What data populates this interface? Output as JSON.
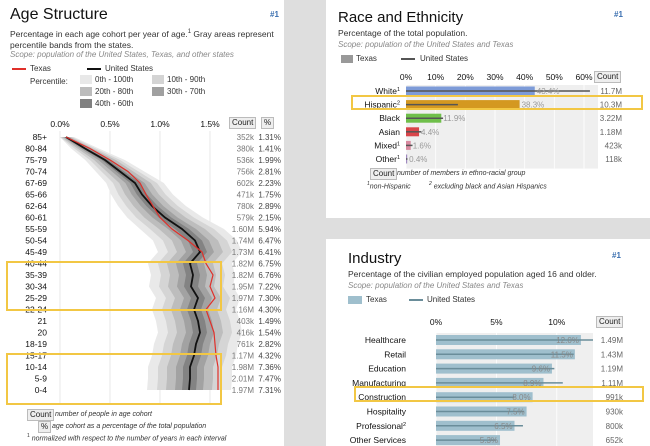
{
  "age": {
    "title": "Age Structure",
    "num": "#1",
    "desc": "Percentage in each age cohort per year of age.",
    "desc_sup": "1",
    "desc2": " Gray areas represent percentile bands from the states.",
    "scope": "Scope: population of the United States, Texas, and other states",
    "legend": {
      "texas": "Texas",
      "us": "United States",
      "percentile_label": "Percentile:",
      "bands": [
        "0th - 100th",
        "10th - 90th",
        "20th - 80th",
        "30th - 70th",
        "40th - 60th"
      ]
    },
    "headers": {
      "count": "Count",
      "pct": "%"
    },
    "footnotes": {
      "count_box": "Count",
      "count_text": "number of people in age cohort",
      "pct_box": "%",
      "pct_text": "age cohort as a percentage of the total population",
      "norm_sup": "1",
      "norm_text": "normalized with respect to the number of years in each interval"
    }
  },
  "race": {
    "title": "Race and Ethnicity",
    "num": "#1",
    "desc": "Percentage of the total population.",
    "scope": "Scope: population of the United States and Texas",
    "legend": {
      "texas": "Texas",
      "us": "United States"
    },
    "count_header": "Count",
    "footnotes": {
      "count_box": "Count",
      "count_text": "number of members in ethno-racial group",
      "sup1": "1",
      "text1": "non-Hispanic",
      "sup2": "2",
      "text2": "excluding black and Asian Hispanics"
    }
  },
  "industry": {
    "title": "Industry",
    "num": "#1",
    "desc": "Percentage of the civilian employed population aged 16 and older.",
    "scope": "Scope: population of the United States and Texas",
    "legend": {
      "texas": "Texas",
      "us": "United States"
    },
    "count_header": "Count"
  },
  "colors": {
    "texas_line": "#e0302a",
    "us_line": "#111111",
    "highlight": "#f2c744",
    "race_blue": "#7d9bd8",
    "race_gold": "#d49820",
    "race_green": "#6fbf4a",
    "race_red": "#d9454a",
    "race_pink": "#d98aa0",
    "race_purple": "#a08bc0",
    "industry_bar": "#9fbfcd",
    "industry_us": "#6a8d9a"
  },
  "chart_data": [
    {
      "type": "line",
      "title": "Age Structure",
      "categories": [
        "85+",
        "80-84",
        "75-79",
        "70-74",
        "67-69",
        "65-66",
        "62-64",
        "60-61",
        "55-59",
        "50-54",
        "45-49",
        "40-44",
        "35-39",
        "30-34",
        "25-29",
        "22-24",
        "21",
        "20",
        "18-19",
        "15-17",
        "10-14",
        "5-9",
        "0-4"
      ],
      "xlim": [
        0,
        1.5
      ],
      "x_ticks": [
        "0.0%",
        "0.5%",
        "1.0%",
        "1.5%"
      ],
      "series": [
        {
          "name": "Texas",
          "values": [
            0.06,
            0.3,
            0.5,
            0.68,
            0.8,
            0.86,
            0.93,
            1.0,
            1.12,
            1.28,
            1.42,
            1.46,
            1.53,
            1.5,
            1.55,
            1.46,
            1.5,
            1.54,
            1.55,
            1.56,
            1.58,
            1.58,
            1.58
          ]
        },
        {
          "name": "United States",
          "values": [
            0.06,
            0.25,
            0.45,
            0.6,
            0.75,
            0.82,
            0.92,
            1.05,
            1.22,
            1.35,
            1.4,
            1.3,
            1.33,
            1.31,
            1.38,
            1.34,
            1.38,
            1.4,
            1.36,
            1.34,
            1.3,
            1.3,
            1.29
          ]
        }
      ],
      "counts": [
        "352k",
        "380k",
        "536k",
        "756k",
        "602k",
        "471k",
        "780k",
        "579k",
        "1.60M",
        "1.74M",
        "1.73M",
        "1.82M",
        "1.82M",
        "1.95M",
        "1.97M",
        "1.16M",
        "403k",
        "416k",
        "761k",
        "1.17M",
        "1.98M",
        "2.01M",
        "1.97M"
      ],
      "percents": [
        "1.31%",
        "1.41%",
        "1.99%",
        "2.81%",
        "2.23%",
        "1.75%",
        "2.89%",
        "2.15%",
        "5.94%",
        "6.47%",
        "6.41%",
        "6.75%",
        "6.76%",
        "7.22%",
        "7.30%",
        "4.30%",
        "1.49%",
        "1.54%",
        "2.82%",
        "4.32%",
        "7.36%",
        "7.47%",
        "7.31%"
      ],
      "highlighted": [
        "40-44",
        "35-39",
        "30-34",
        "25-29",
        "15-17",
        "10-14",
        "5-9",
        "0-4"
      ]
    },
    {
      "type": "bar",
      "title": "Race and Ethnicity",
      "categories": [
        "White",
        "Hispanic",
        "Black",
        "Asian",
        "Mixed",
        "Other"
      ],
      "category_sups": [
        "1",
        "2",
        "",
        "",
        "1",
        "1"
      ],
      "xlim": [
        0,
        60
      ],
      "x_ticks": [
        "0%",
        "10%",
        "20%",
        "30%",
        "40%",
        "50%",
        "60%"
      ],
      "series": [
        {
          "name": "Texas",
          "values": [
            43.4,
            38.3,
            11.9,
            4.4,
            1.6,
            0.4
          ],
          "labels": [
            "43.4%",
            "38.3%",
            "11.9%",
            "4.4%",
            "1.6%",
            "0.4%"
          ]
        },
        {
          "name": "United States",
          "values": [
            62,
            17.5,
            12.5,
            5.2,
            2.2,
            0.5
          ]
        }
      ],
      "counts": [
        "11.7M",
        "10.3M",
        "3.22M",
        "1.18M",
        "423k",
        "118k"
      ],
      "highlighted": [
        "Hispanic"
      ]
    },
    {
      "type": "bar",
      "title": "Industry",
      "categories": [
        "Healthcare",
        "Retail",
        "Education",
        "Manufacturing",
        "Construction",
        "Hospitality",
        "Professional",
        "Other Services"
      ],
      "category_sups": [
        "",
        "",
        "",
        "",
        "",
        "",
        "2",
        ""
      ],
      "xlim": [
        0,
        13
      ],
      "x_ticks": [
        "0%",
        "5%",
        "10%"
      ],
      "series": [
        {
          "name": "Texas",
          "values": [
            12.0,
            11.5,
            9.6,
            8.9,
            8.0,
            7.5,
            6.5,
            5.3
          ],
          "labels": [
            "12.0%",
            "11.5%",
            "9.6%",
            "8.9%",
            "8.0%",
            "7.5%",
            "6.5%",
            "5.3%"
          ]
        },
        {
          "name": "United States",
          "values": [
            13.0,
            11.4,
            9.8,
            10.5,
            6.5,
            7.3,
            7.2,
            5.0
          ]
        }
      ],
      "counts": [
        "1.49M",
        "1.43M",
        "1.19M",
        "1.11M",
        "991k",
        "930k",
        "800k",
        "652k"
      ],
      "highlighted": [
        "Construction"
      ]
    }
  ]
}
